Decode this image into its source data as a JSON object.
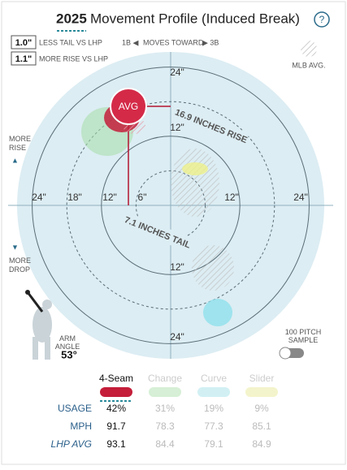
{
  "header": {
    "year": "2025",
    "title": "Movement Profile (Induced Break)",
    "help": "?"
  },
  "comparisons": [
    {
      "value": "1.0\"",
      "label": "LESS TAIL VS LHP"
    },
    {
      "value": "1.1\"",
      "label": "MORE RISE VS LHP"
    }
  ],
  "direction": {
    "left": "1B ◀",
    "middle": "MOVES TOWARD",
    "right": "▶ 3B"
  },
  "legend": {
    "mlb_avg": "MLB AVG."
  },
  "plot": {
    "more_rise": "MORE RISE",
    "more_drop": "MORE DROP",
    "ring_labels": [
      "24\"",
      "12\"",
      "24\"",
      "18\"",
      "12\"",
      "6\"",
      "12\"",
      "24\"",
      "12\"",
      "24\""
    ],
    "avg": "AVG",
    "rise_note": "16.9 INCHES RISE",
    "tail_note": "7.1 INCHES TAIL"
  },
  "arm": {
    "label": "ARM ANGLE",
    "value": "53°"
  },
  "sample": "100 PITCH SAMPLE",
  "table": {
    "pitches": [
      "4-Seam",
      "Change",
      "Curve",
      "Slider"
    ],
    "rows": [
      {
        "label": "USAGE",
        "values": [
          "42%",
          "31%",
          "19%",
          "9%"
        ]
      },
      {
        "label": "MPH",
        "values": [
          "91.7",
          "78.3",
          "77.3",
          "85.1"
        ]
      },
      {
        "label": "LHP AVG",
        "values": [
          "93.1",
          "84.4",
          "79.1",
          "84.9"
        ]
      }
    ]
  }
}
